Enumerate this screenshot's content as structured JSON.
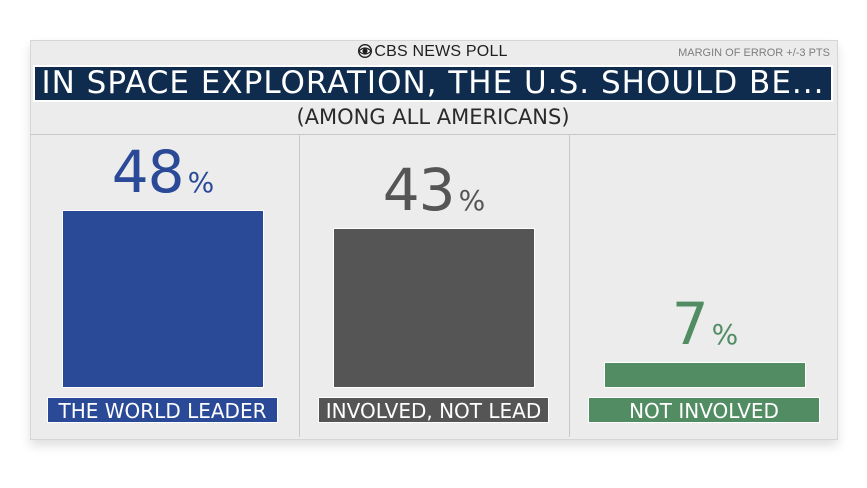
{
  "header": {
    "brand": "CBS NEWS POLL",
    "margin": "MARGIN OF ERROR +/-3 PTS",
    "title": "IN SPACE EXPLORATION, THE U.S. SHOULD BE...",
    "subtitle": "(AMONG ALL AMERICANS)"
  },
  "colors": {
    "title_bg": "#0f2c4e",
    "card_bg": "#ececec"
  },
  "chart_data": {
    "type": "bar",
    "title": "IN SPACE EXPLORATION, THE U.S. SHOULD BE...",
    "subtitle": "(AMONG ALL AMERICANS)",
    "categories": [
      "THE WORLD LEADER",
      "INVOLVED, NOT LEAD",
      "NOT INVOLVED"
    ],
    "values": [
      48,
      43,
      7
    ],
    "value_labels": [
      "48",
      "43",
      "7"
    ],
    "unit": "%",
    "colors": [
      "#2a4a98",
      "#555555",
      "#518c63"
    ],
    "value_colors": [
      "#2a4a98",
      "#555555",
      "#518c63"
    ],
    "ylim": [
      0,
      100
    ],
    "grid": false,
    "legend": "none"
  }
}
